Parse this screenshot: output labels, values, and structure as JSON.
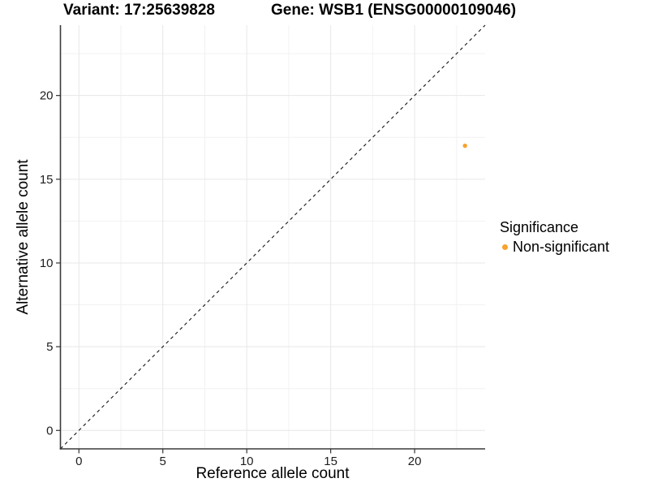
{
  "header": {
    "variant_title": "Variant: 17:25639828",
    "gene_title": "Gene: WSB1 (ENSG00000109046)"
  },
  "legend": {
    "title": "Significance",
    "items": [
      {
        "label": "Non-significant",
        "color": "#F9A22F",
        "marker": "dot-icon"
      }
    ]
  },
  "chart_data": {
    "type": "scatter",
    "title": "Variant: 17:25639828 / Gene: WSB1 (ENSG00000109046)",
    "xlabel": "Reference allele count",
    "ylabel": "Alternative allele count",
    "xlim": [
      -1.1,
      24.2
    ],
    "ylim": [
      -1.1,
      24.2
    ],
    "x_ticks": [
      0,
      5,
      10,
      15,
      20
    ],
    "y_ticks": [
      0,
      5,
      10,
      15,
      20
    ],
    "x_minor_ticks": [
      2.5,
      7.5,
      12.5,
      17.5,
      22.5
    ],
    "y_minor_ticks": [
      2.5,
      7.5,
      12.5,
      17.5,
      22.5
    ],
    "grid": true,
    "legend_position": "right",
    "series": [
      {
        "name": "Non-significant",
        "color": "#F9A22F",
        "points": [
          {
            "x": 23,
            "y": 17
          }
        ]
      }
    ],
    "reference_line": {
      "type": "identity",
      "style": "dashed",
      "color": "#141414"
    }
  },
  "colors": {
    "background": "#ffffff",
    "grid_major": "#e7e7e7",
    "grid_minor": "#f2f2f2",
    "axis_line": "#3a3a3a",
    "tick_mark": "#333333",
    "tick_label": "#1e1e1e",
    "point": "#F9A22F"
  }
}
